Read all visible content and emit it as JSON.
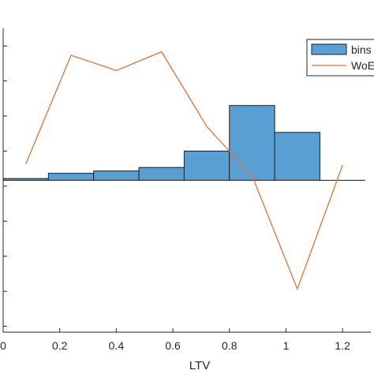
{
  "chart_data": {
    "type": "bar",
    "xlabel": "LTV",
    "xlim": [
      0,
      1.3
    ],
    "ylim": [
      -1.3,
      1.3
    ],
    "x_ticks": [
      0,
      0.2,
      0.4,
      0.6,
      0.8,
      1.0,
      1.2
    ],
    "x_tick_labels": [
      "0",
      "0.2",
      "0.4",
      "0.6",
      "0.8",
      "1",
      "1.2"
    ],
    "y_ticks": [
      -1.25,
      -0.95,
      -0.65,
      -0.35,
      -0.05,
      0.25,
      0.55,
      0.85,
      1.15
    ],
    "legend_position": "top-right",
    "series": [
      {
        "name": "bins",
        "kind": "histogram",
        "color": "#5a9fd4",
        "edge_color": "#1f1f1f",
        "bin_edges": [
          0,
          0.16,
          0.32,
          0.48,
          0.64,
          0.8,
          0.96,
          1.12,
          1.28
        ],
        "values": [
          0.015,
          0.06,
          0.08,
          0.11,
          0.25,
          0.64,
          0.41,
          0
        ]
      },
      {
        "name": "WoE",
        "kind": "line",
        "color": "#d9743a",
        "x": [
          0.08,
          0.24,
          0.4,
          0.56,
          0.72,
          0.88,
          1.04,
          1.2
        ],
        "y": [
          0.14,
          1.07,
          0.94,
          1.1,
          0.46,
          0.04,
          -0.93,
          0.13
        ]
      }
    ]
  }
}
